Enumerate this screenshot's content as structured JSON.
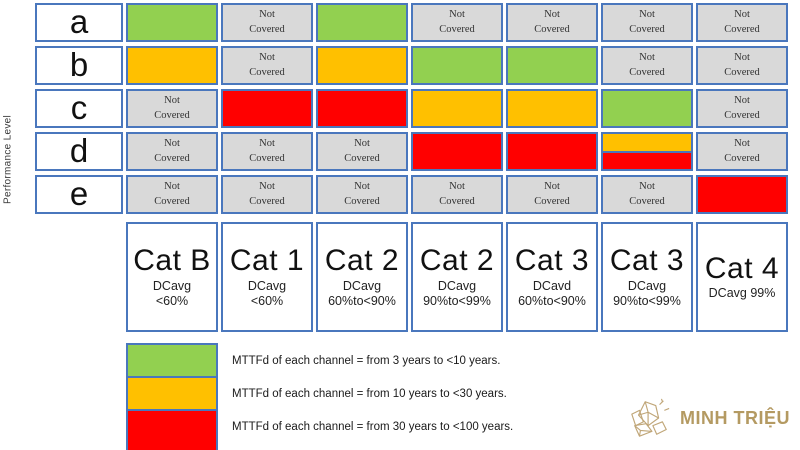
{
  "axis": {
    "ylabel": "Performance Level"
  },
  "labels": {
    "not_covered": "Not Covered"
  },
  "colors": {
    "green": "#92d050",
    "yellow": "#ffc000",
    "red": "#ff0000",
    "gray": "#d9d9d9",
    "border": "#4a77bd"
  },
  "chart_data": {
    "type": "heatmap",
    "ylabel": "Performance Level",
    "row_labels": [
      "a",
      "b",
      "c",
      "d",
      "e"
    ],
    "columns": [
      {
        "label": "Cat B",
        "subs": [
          "DCavg",
          "<60%"
        ]
      },
      {
        "label": "Cat 1",
        "subs": [
          "DCavg",
          "<60%"
        ]
      },
      {
        "label": "Cat 2",
        "subs": [
          "DCavg",
          "60%to<90%"
        ]
      },
      {
        "label": "Cat 2",
        "subs": [
          "DCavg",
          "90%to<99%"
        ]
      },
      {
        "label": "Cat 3",
        "subs": [
          "DCavd",
          "60%to<90%"
        ]
      },
      {
        "label": "Cat 3",
        "subs": [
          "DCavg",
          "90%to<99%"
        ]
      },
      {
        "label": "Cat 4",
        "subs": [
          "DCavg 99%"
        ]
      }
    ],
    "cells": [
      [
        "green",
        "nc",
        "green",
        "nc",
        "nc",
        "nc",
        "nc"
      ],
      [
        "yellow",
        "nc",
        "yellow",
        "green",
        "green",
        "nc",
        "nc"
      ],
      [
        "nc",
        "red",
        "red",
        "yellow",
        "yellow",
        "green",
        "nc"
      ],
      [
        "nc",
        "nc",
        "nc",
        "red",
        "red",
        "yellow|red",
        "nc"
      ],
      [
        "nc",
        "nc",
        "nc",
        "nc",
        "nc",
        "nc",
        "red"
      ]
    ],
    "legend": [
      {
        "color": "green",
        "text": "MTTFd of each channel  = from 3 years to <10 years."
      },
      {
        "color": "yellow",
        "text": "MTTFd of each channel  = from 10 years to <30 years."
      },
      {
        "color": "red",
        "text": "MTTFd of each channel  = from 30 years to <100 years."
      }
    ],
    "legend_position": "bottom-left",
    "grid": "blue cell borders"
  },
  "watermark": {
    "text": "MINH TRIỆU"
  }
}
